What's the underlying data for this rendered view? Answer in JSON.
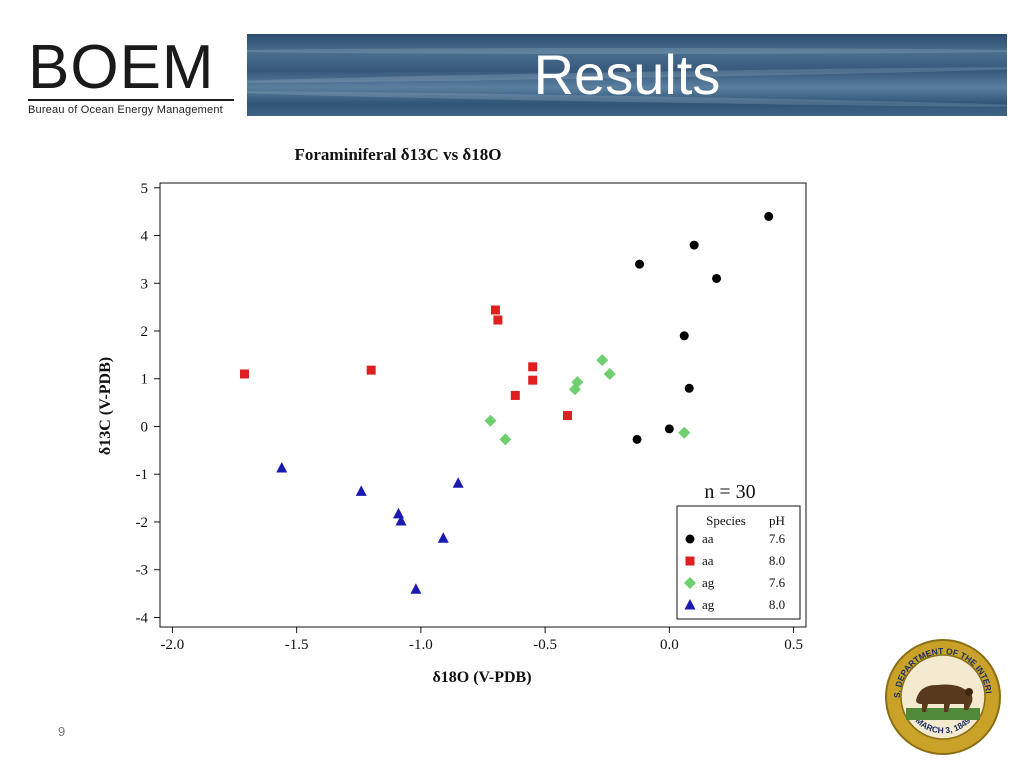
{
  "header": {
    "logo_text": "BOEM",
    "logo_subtitle": "Bureau of Ocean Energy Management",
    "title": "Results"
  },
  "footer": {
    "page_number": "9",
    "seal_text_top": "U.S. DEPARTMENT OF THE INTERIOR",
    "seal_text_bottom": "MARCH 3, 1849"
  },
  "colors": {
    "black_series": "#000000",
    "red_series": "#e02020",
    "green_series": "#6fcf6f",
    "blue_series": "#1a1ab0"
  },
  "chart_data": {
    "type": "scatter",
    "title": "Foraminiferal δ13C vs δ18O",
    "xlabel": "δ18O (V-PDB)",
    "ylabel": "δ13C (V-PDB)",
    "xlim": [
      -2.05,
      0.55
    ],
    "ylim": [
      -4.2,
      5.1
    ],
    "xticks": [
      -2.0,
      -1.5,
      -1.0,
      -0.5,
      0.0,
      0.5
    ],
    "xtick_labels": [
      "-2.0",
      "-1.5",
      "-1.0",
      "-0.5",
      "0.0",
      "0.5"
    ],
    "yticks": [
      -4,
      -3,
      -2,
      -1,
      0,
      1,
      2,
      3,
      4,
      5
    ],
    "ytick_labels": [
      "-4",
      "-3",
      "-2",
      "-1",
      "0",
      "1",
      "2",
      "3",
      "4",
      "5"
    ],
    "grid": false,
    "annotation": "n = 30",
    "legend_position": "bottom-right",
    "legend_headers": [
      "Species",
      "pH"
    ],
    "series": [
      {
        "species": "aa",
        "ph": "7.6",
        "marker": "circle",
        "color": "#000000",
        "points": [
          [
            0.4,
            4.4
          ],
          [
            0.1,
            3.8
          ],
          [
            -0.12,
            3.4
          ],
          [
            0.19,
            3.1
          ],
          [
            0.06,
            1.9
          ],
          [
            0.08,
            0.8
          ],
          [
            0.0,
            -0.05
          ],
          [
            -0.13,
            -0.27
          ]
        ]
      },
      {
        "species": "aa",
        "ph": "8.0",
        "marker": "square",
        "color": "#e02020",
        "points": [
          [
            -1.71,
            1.1
          ],
          [
            -1.2,
            1.18
          ],
          [
            -0.7,
            2.44
          ],
          [
            -0.69,
            2.23
          ],
          [
            -0.55,
            1.25
          ],
          [
            -0.55,
            0.97
          ],
          [
            -0.62,
            0.65
          ],
          [
            -0.41,
            0.23
          ]
        ]
      },
      {
        "species": "ag",
        "ph": "7.6",
        "marker": "diamond",
        "color": "#6fcf6f",
        "points": [
          [
            -0.27,
            1.39
          ],
          [
            -0.24,
            1.1
          ],
          [
            -0.37,
            0.93
          ],
          [
            -0.38,
            0.78
          ],
          [
            -0.72,
            0.12
          ],
          [
            -0.66,
            -0.27
          ],
          [
            0.06,
            -0.13
          ]
        ]
      },
      {
        "species": "ag",
        "ph": "8.0",
        "marker": "triangle",
        "color": "#1a1ab0",
        "points": [
          [
            -1.56,
            -0.87
          ],
          [
            -0.85,
            -1.19
          ],
          [
            -1.24,
            -1.36
          ],
          [
            -1.09,
            -1.83
          ],
          [
            -1.08,
            -1.98
          ],
          [
            -0.91,
            -2.34
          ],
          [
            -1.02,
            -3.41
          ]
        ]
      }
    ]
  }
}
